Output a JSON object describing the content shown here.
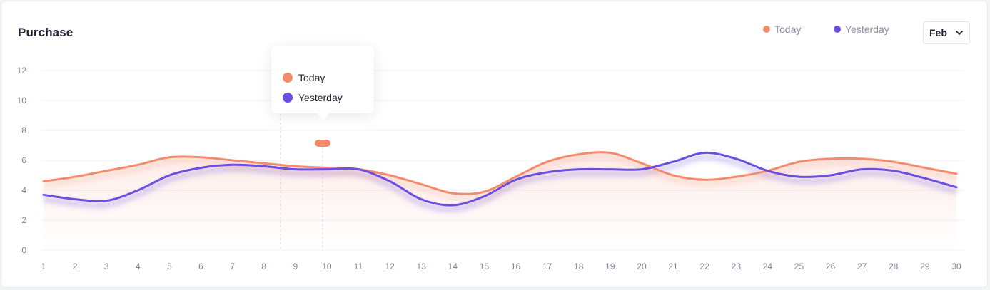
{
  "widget": {
    "title": "Purchase",
    "month_selected": "Feb"
  },
  "legend": [
    {
      "label": "Today",
      "color": "#f58b6b"
    },
    {
      "label": "Yesterday",
      "color": "#6a4fe0"
    }
  ],
  "tooltip": {
    "items": [
      {
        "label": "Today",
        "color": "#f58b6b"
      },
      {
        "label": "Yesterday",
        "color": "#6a4fe0"
      }
    ]
  },
  "chart_data": {
    "type": "line",
    "title": "Purchase",
    "xlabel": "",
    "ylabel": "",
    "x": [
      1,
      2,
      3,
      4,
      5,
      6,
      7,
      8,
      9,
      10,
      11,
      12,
      13,
      14,
      15,
      16,
      17,
      18,
      19,
      20,
      21,
      22,
      23,
      24,
      25,
      26,
      27,
      28,
      29,
      30
    ],
    "ylim": [
      0,
      12
    ],
    "yticks": [
      0,
      2,
      4,
      6,
      8,
      10,
      12
    ],
    "grid": true,
    "legend_position": "top-right",
    "series": [
      {
        "name": "Today",
        "color": "#f58b6b",
        "values": [
          4.6,
          4.9,
          5.3,
          5.7,
          6.2,
          6.2,
          6.0,
          5.8,
          5.6,
          5.5,
          5.4,
          5.0,
          4.4,
          3.8,
          3.9,
          4.9,
          5.9,
          6.4,
          6.5,
          5.8,
          5.0,
          4.7,
          4.9,
          5.3,
          5.9,
          6.1,
          6.1,
          5.9,
          5.5,
          5.1
        ]
      },
      {
        "name": "Yesterday",
        "color": "#6a4fe0",
        "values": [
          3.7,
          3.4,
          3.3,
          4.0,
          5.0,
          5.5,
          5.7,
          5.6,
          5.4,
          5.4,
          5.4,
          4.6,
          3.4,
          3.0,
          3.6,
          4.7,
          5.2,
          5.4,
          5.4,
          5.4,
          5.9,
          6.5,
          6.1,
          5.3,
          4.9,
          5.0,
          5.4,
          5.3,
          4.8,
          4.2
        ]
      }
    ]
  }
}
